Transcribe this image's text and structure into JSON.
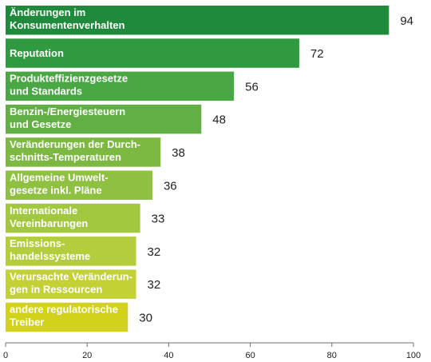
{
  "chart_data": {
    "type": "bar",
    "orientation": "horizontal",
    "title": "",
    "xlabel": "",
    "ylabel": "",
    "categories": [
      [
        "Änderungen im",
        "Konsumentenverhalten"
      ],
      [
        "Reputation"
      ],
      [
        "Produkteffizienzgesetze",
        "und Standards"
      ],
      [
        "Benzin-/Energiesteuern",
        "und Gesetze"
      ],
      [
        "Veränderungen der Durch-",
        "schnitts-Temperaturen"
      ],
      [
        "Allgemeine Umwelt-",
        "gesetze inkl. Pläne"
      ],
      [
        "Internationale",
        "Vereinbarungen"
      ],
      [
        "Emissions-",
        "handelssysteme"
      ],
      [
        "Verursachte Veränderun-",
        "gen in Ressourcen"
      ],
      [
        "andere regulatorische",
        "Treiber"
      ]
    ],
    "values": [
      94,
      72,
      56,
      48,
      38,
      36,
      33,
      32,
      32,
      30
    ],
    "value_labels": [
      "94",
      "72",
      "56",
      "48",
      "38",
      "36",
      "33",
      "32",
      "32",
      "30"
    ],
    "bar_colors": [
      "#1f8a3c",
      "#2f9a40",
      "#4aa844",
      "#62b045",
      "#7db843",
      "#8fc041",
      "#a2c83f",
      "#b4cd3c",
      "#c3d136",
      "#d2d21c"
    ],
    "xlim": [
      0,
      100
    ],
    "xticks": [
      0,
      20,
      40,
      60,
      80,
      100
    ],
    "xtick_labels": [
      "0",
      "20",
      "40",
      "60",
      "80",
      "100"
    ],
    "grid": false,
    "legend": "none"
  }
}
